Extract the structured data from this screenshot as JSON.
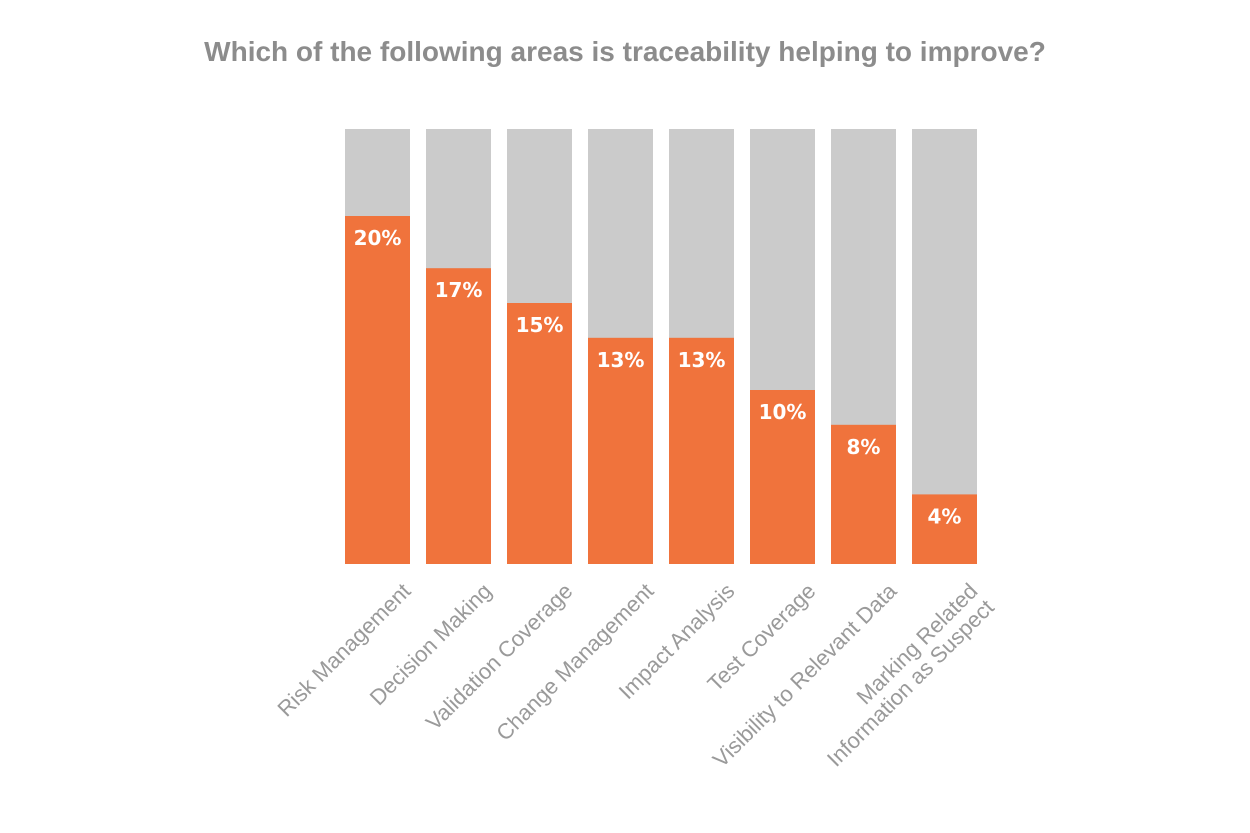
{
  "chart_data": {
    "type": "bar",
    "stacked_to_100": true,
    "title": "Which of the following areas is traceability helping to improve?",
    "xlabel": "",
    "ylabel": "",
    "ylim": [
      0,
      25
    ],
    "grid": false,
    "categories": [
      [
        "Risk Management"
      ],
      [
        "Decision Making"
      ],
      [
        "Validation Coverage"
      ],
      [
        "Change Management"
      ],
      [
        "Impact Analysis"
      ],
      [
        "Test Coverage"
      ],
      [
        "Visibility to Relevant Data"
      ],
      [
        "Marking Related",
        "Information as Suspect"
      ]
    ],
    "values": [
      20,
      17,
      15,
      13,
      13,
      10,
      8,
      4
    ],
    "value_labels": [
      "20%",
      "17%",
      "15%",
      "13%",
      "13%",
      "10%",
      "8%",
      "4%"
    ],
    "colors": {
      "value": "#f0733c",
      "background": "#cbcbcb",
      "title": "#8c8c8c",
      "category_label": "#9a9a9a",
      "value_label": "#ffffff"
    }
  }
}
